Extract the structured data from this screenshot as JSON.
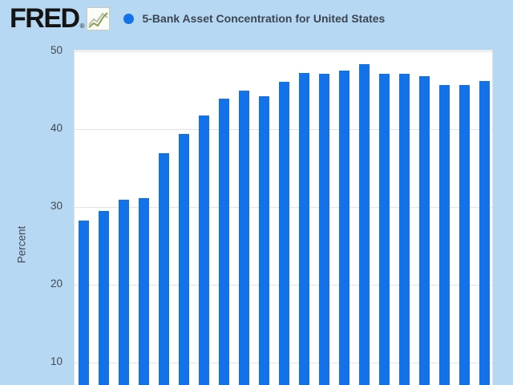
{
  "header": {
    "logo_text": "FRED",
    "registered_mark": "®",
    "logo_icon": "fred-sparkline-icon",
    "legend": {
      "marker_color": "#1372e8",
      "series_label": "5-Bank Asset Concentration for United States"
    }
  },
  "y_axis": {
    "label": "Percent",
    "ticks": [
      50,
      40,
      30,
      20,
      10
    ]
  },
  "colors": {
    "page_background": "#b7d8f2",
    "plot_background": "#ffffff",
    "plot_border": "#dde2e6",
    "bar": "#1372e8",
    "gridline": "#e4e4e4",
    "tick_text": "#404a54",
    "title_text": "#3a4652",
    "logo_text": "#141414"
  },
  "chart_data": {
    "type": "bar",
    "title": "5-Bank Asset Concentration for United States",
    "xlabel": "",
    "ylabel": "Percent",
    "values": [
      28.2,
      29.5,
      30.9,
      31.1,
      36.9,
      39.4,
      41.8,
      43.9,
      45.0,
      44.2,
      46.1,
      47.2,
      47.1,
      47.5,
      48.3,
      47.1,
      47.1,
      46.8,
      45.7,
      45.7,
      46.2
    ],
    "num_bars": 21,
    "yticks_visible": [
      50,
      40,
      30,
      20,
      10
    ],
    "ylim_visible": [
      10,
      50
    ],
    "x_tick_labels_visible": false,
    "grid": true,
    "legend_position": "top-left",
    "note": "chart cropped at bottom; x-axis labels not visible"
  }
}
